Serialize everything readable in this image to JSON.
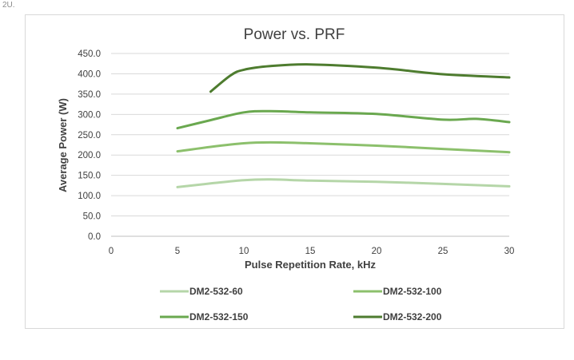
{
  "corner_label": "2U.",
  "chart_data": {
    "type": "line",
    "title": "Power vs. PRF",
    "xlabel": "Pulse Repetition Rate, kHz",
    "ylabel": "Average Power (W)",
    "xlim": [
      0,
      30
    ],
    "ylim": [
      0,
      450
    ],
    "x_ticks": [
      "0",
      "5",
      "10",
      "15",
      "20",
      "25",
      "30"
    ],
    "y_ticks": [
      "0.0",
      "50.0",
      "100.0",
      "150.0",
      "200.0",
      "250.0",
      "300.0",
      "350.0",
      "400.0",
      "450.0"
    ],
    "grid": "horizontal",
    "legend_position": "bottom",
    "series": [
      {
        "name": "DM2-532-60",
        "color": "#b5d6a8",
        "points": [
          [
            5,
            121
          ],
          [
            7.5,
            130
          ],
          [
            10,
            138
          ],
          [
            12,
            140
          ],
          [
            15,
            137
          ],
          [
            20,
            134
          ],
          [
            25,
            129
          ],
          [
            30,
            123
          ]
        ]
      },
      {
        "name": "DM2-532-100",
        "color": "#8cc06c",
        "points": [
          [
            5,
            209
          ],
          [
            7.5,
            220
          ],
          [
            10,
            229
          ],
          [
            12,
            231
          ],
          [
            15,
            229
          ],
          [
            20,
            223
          ],
          [
            25,
            215
          ],
          [
            30,
            207
          ]
        ]
      },
      {
        "name": "DM2-532-150",
        "color": "#6aa84f",
        "points": [
          [
            5,
            266
          ],
          [
            7.5,
            286
          ],
          [
            10,
            305
          ],
          [
            12,
            308
          ],
          [
            15,
            305
          ],
          [
            20,
            301
          ],
          [
            25,
            287
          ],
          [
            27.5,
            289
          ],
          [
            30,
            281
          ]
        ]
      },
      {
        "name": "DM2-532-200",
        "color": "#4e7c2f",
        "points": [
          [
            7.5,
            356
          ],
          [
            9,
            396
          ],
          [
            10,
            410
          ],
          [
            12,
            419
          ],
          [
            15,
            423
          ],
          [
            20,
            415
          ],
          [
            25,
            399
          ],
          [
            30,
            391
          ]
        ]
      }
    ]
  }
}
